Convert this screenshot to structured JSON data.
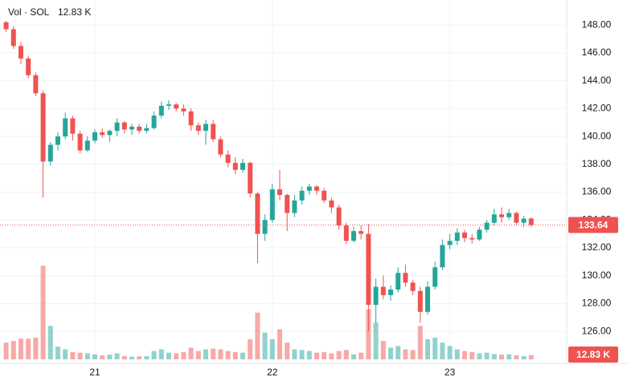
{
  "chart_data": {
    "type": "candlestick",
    "legend_name": "Vol · SOL",
    "last_volume_label": "12.83 K",
    "last_price": 133.64,
    "up_color": "#26a69a",
    "down_color": "#ef5350",
    "grid": true,
    "ylim": [
      123.7,
      149.8
    ],
    "yticks": [
      {
        "value": 126,
        "label": "126.00"
      },
      {
        "value": 128,
        "label": "128.00"
      },
      {
        "value": 130,
        "label": "130.00"
      },
      {
        "value": 132,
        "label": "132.00"
      },
      {
        "value": 134,
        "label": "134.00"
      },
      {
        "value": 136,
        "label": "136.00"
      },
      {
        "value": 138,
        "label": "138.00"
      },
      {
        "value": 140,
        "label": "140.00"
      },
      {
        "value": 142,
        "label": "142.00"
      },
      {
        "value": 144,
        "label": "144.00"
      },
      {
        "value": 146,
        "label": "146.00"
      },
      {
        "value": 148,
        "label": "148.00"
      }
    ],
    "volume_ylim": [
      0,
      300
    ],
    "categories": [
      null,
      null,
      null,
      null,
      null,
      null,
      null,
      null,
      null,
      null,
      null,
      null,
      "21",
      null,
      null,
      null,
      null,
      null,
      null,
      null,
      null,
      null,
      null,
      null,
      null,
      null,
      null,
      null,
      null,
      null,
      null,
      null,
      null,
      null,
      null,
      null,
      "22",
      null,
      null,
      null,
      null,
      null,
      null,
      null,
      null,
      null,
      null,
      null,
      null,
      null,
      null,
      null,
      null,
      null,
      null,
      null,
      null,
      null,
      null,
      null,
      "23",
      null,
      null,
      null,
      null,
      null,
      null,
      null,
      null,
      null,
      null,
      null
    ],
    "open": [
      148.2,
      147.7,
      146.5,
      145.6,
      144.4,
      143.1,
      138.2,
      139.4,
      140.0,
      141.3,
      140.2,
      139.0,
      139.7,
      140.3,
      140.1,
      140.4,
      141.0,
      140.5,
      140.7,
      140.4,
      140.6,
      141.5,
      142.2,
      142.3,
      142.0,
      141.8,
      140.8,
      140.4,
      140.9,
      139.8,
      138.7,
      138.1,
      137.6,
      138.1,
      135.9,
      133.0,
      134.0,
      136.2,
      135.8,
      134.5,
      135.4,
      136.1,
      136.4,
      136.1,
      135.4,
      134.9,
      133.6,
      132.5,
      133.2,
      133.0,
      127.9,
      129.2,
      128.6,
      129.0,
      130.2,
      129.5,
      128.9,
      127.4,
      129.2,
      130.6,
      132.2,
      132.5,
      133.1,
      132.7,
      132.6,
      133.3,
      133.8,
      134.4,
      134.2,
      134.5,
      133.8,
      134.1
    ],
    "high": [
      148.3,
      147.9,
      146.8,
      145.8,
      144.6,
      143.3,
      139.6,
      140.3,
      141.7,
      141.5,
      140.4,
      140.0,
      140.5,
      140.6,
      140.5,
      141.3,
      141.1,
      140.9,
      140.9,
      140.9,
      141.8,
      142.5,
      142.6,
      142.4,
      142.3,
      142.0,
      141.0,
      141.2,
      141.2,
      140.0,
      139.0,
      138.5,
      138.4,
      138.2,
      136.0,
      134.4,
      136.6,
      137.6,
      135.9,
      135.8,
      136.4,
      136.6,
      136.5,
      136.3,
      135.6,
      135.1,
      133.8,
      133.5,
      133.6,
      133.7,
      129.8,
      130.0,
      129.3,
      130.6,
      130.8,
      129.7,
      129.2,
      129.6,
      131.0,
      132.6,
      133.0,
      133.4,
      133.3,
      133.0,
      133.5,
      134.0,
      134.8,
      134.9,
      134.8,
      134.6,
      134.3,
      134.2
    ],
    "low": [
      147.5,
      146.3,
      145.2,
      144.2,
      142.9,
      135.6,
      137.9,
      139.0,
      139.8,
      139.7,
      138.8,
      138.9,
      139.5,
      139.9,
      139.6,
      140.0,
      140.2,
      140.1,
      140.2,
      140.2,
      140.5,
      141.3,
      141.9,
      141.8,
      141.5,
      140.4,
      140.1,
      139.4,
      139.6,
      138.5,
      137.8,
      137.3,
      137.4,
      135.6,
      130.9,
      132.5,
      133.8,
      135.4,
      133.2,
      134.2,
      135.1,
      135.8,
      135.8,
      135.2,
      134.5,
      133.3,
      132.3,
      132.4,
      132.6,
      126.0,
      126.6,
      128.3,
      128.2,
      128.8,
      129.2,
      128.6,
      126.6,
      127.2,
      129.0,
      130.4,
      131.9,
      132.2,
      132.4,
      132.3,
      132.5,
      133.1,
      133.6,
      133.8,
      134.0,
      133.6,
      133.5,
      133.5
    ],
    "close": [
      147.7,
      146.5,
      145.6,
      144.4,
      143.1,
      138.2,
      139.4,
      140.0,
      141.3,
      140.2,
      139.0,
      139.7,
      140.3,
      140.1,
      140.4,
      141.0,
      140.5,
      140.7,
      140.4,
      140.6,
      141.5,
      142.2,
      142.3,
      142.0,
      141.8,
      140.8,
      140.4,
      140.9,
      139.8,
      138.7,
      138.1,
      137.6,
      138.1,
      135.9,
      133.0,
      134.0,
      136.2,
      135.8,
      134.5,
      135.4,
      136.1,
      136.4,
      136.1,
      135.4,
      134.9,
      133.6,
      132.5,
      133.2,
      133.0,
      127.9,
      129.2,
      128.6,
      129.0,
      130.2,
      129.5,
      128.9,
      127.4,
      129.2,
      130.6,
      132.2,
      132.5,
      133.1,
      132.7,
      132.6,
      133.3,
      133.8,
      134.4,
      134.2,
      134.5,
      133.8,
      134.1,
      133.64
    ],
    "volume": [
      50,
      55,
      62,
      62,
      65,
      280,
      100,
      38,
      30,
      22,
      20,
      18,
      15,
      12,
      14,
      18,
      10,
      8,
      9,
      10,
      25,
      30,
      20,
      18,
      22,
      35,
      25,
      30,
      32,
      30,
      25,
      22,
      20,
      60,
      140,
      80,
      60,
      90,
      50,
      30,
      28,
      25,
      20,
      22,
      18,
      25,
      28,
      15,
      20,
      150,
      110,
      55,
      35,
      40,
      30,
      28,
      100,
      60,
      65,
      50,
      40,
      30,
      25,
      22,
      18,
      20,
      16,
      14,
      15,
      12,
      10,
      12.83
    ]
  }
}
